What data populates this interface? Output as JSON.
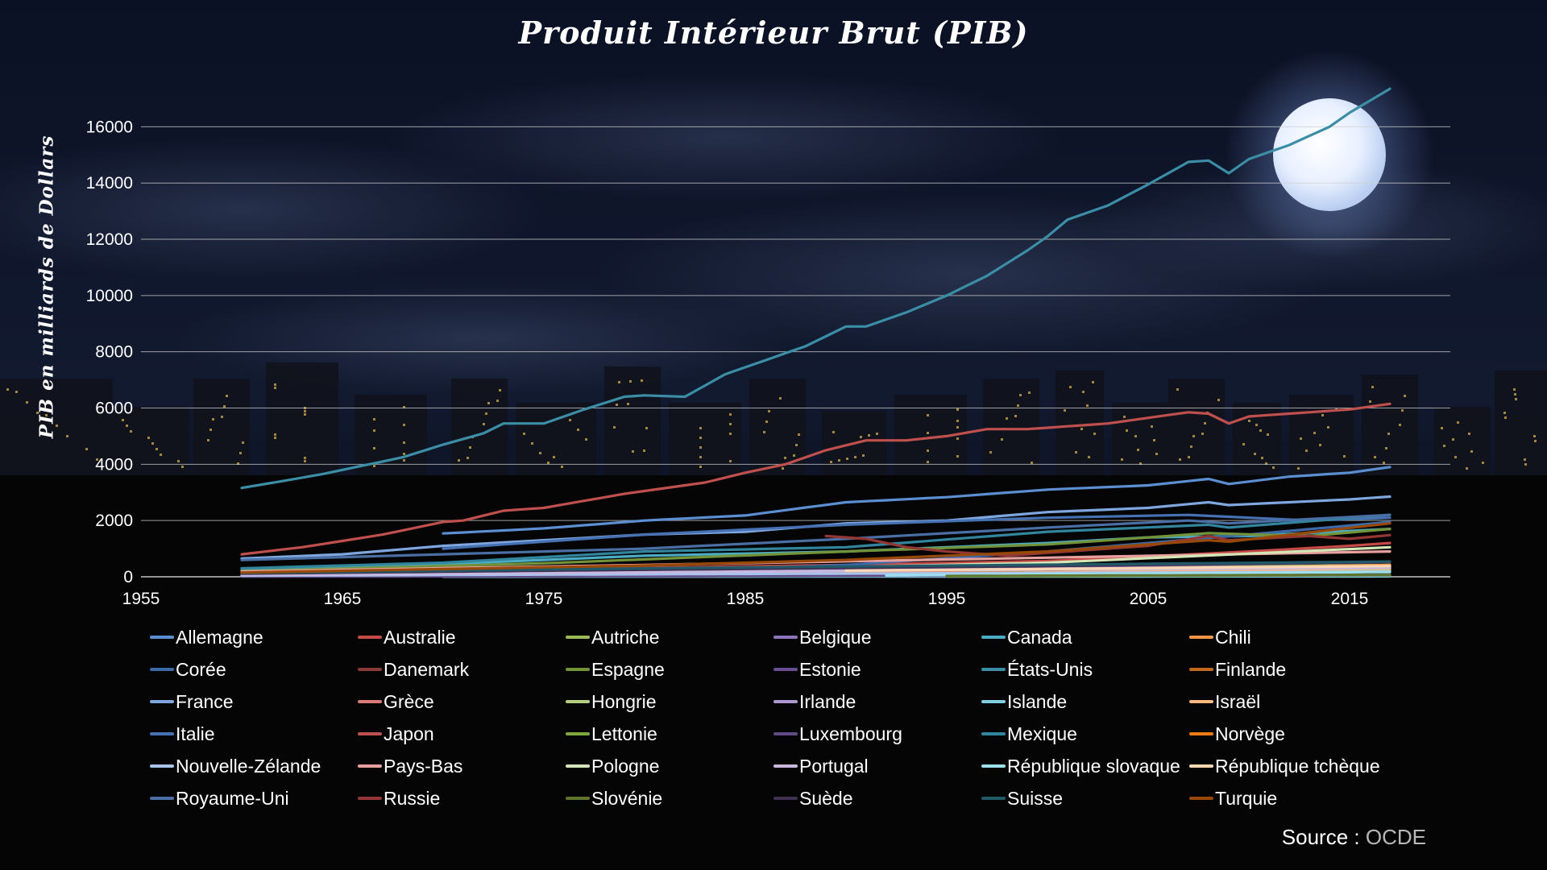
{
  "chart_data": {
    "type": "line",
    "title": "Produit Intérieur Brut (PIB)",
    "xlabel": "",
    "ylabel": "PIB en milliards de Dollars",
    "xlim": [
      1955,
      2020
    ],
    "ylim": [
      0,
      17500
    ],
    "x_ticks": [
      1955,
      1965,
      1975,
      1985,
      1995,
      2005,
      2015
    ],
    "y_ticks": [
      0,
      2000,
      4000,
      6000,
      8000,
      10000,
      12000,
      14000,
      16000
    ],
    "grid": "horizontal",
    "legend_position": "bottom",
    "source_label": "Source",
    "source_value": "OCDE",
    "series": [
      {
        "name": "Allemagne",
        "color": "#5b8fd1",
        "start": 1970,
        "end": 2017,
        "points": [
          [
            1970,
            1540
          ],
          [
            1975,
            1720
          ],
          [
            1980,
            2000
          ],
          [
            1985,
            2180
          ],
          [
            1990,
            2650
          ],
          [
            1995,
            2830
          ],
          [
            2000,
            3100
          ],
          [
            2005,
            3250
          ],
          [
            2008,
            3480
          ],
          [
            2009,
            3300
          ],
          [
            2012,
            3560
          ],
          [
            2015,
            3700
          ],
          [
            2017,
            3900
          ]
        ]
      },
      {
        "name": "Australie",
        "color": "#c74a47",
        "start": 1960,
        "end": 2017,
        "points": [
          [
            1960,
            140
          ],
          [
            1970,
            230
          ],
          [
            1980,
            320
          ],
          [
            1990,
            420
          ],
          [
            2000,
            560
          ],
          [
            2005,
            720
          ],
          [
            2010,
            900
          ],
          [
            2015,
            1100
          ],
          [
            2017,
            1200
          ]
        ]
      },
      {
        "name": "Autriche",
        "color": "#9bbb59",
        "start": 1960,
        "end": 2017,
        "points": [
          [
            1960,
            70
          ],
          [
            1980,
            180
          ],
          [
            2000,
            300
          ],
          [
            2017,
            420
          ]
        ]
      },
      {
        "name": "Belgique",
        "color": "#8e74b8",
        "start": 1960,
        "end": 2017,
        "points": [
          [
            1960,
            90
          ],
          [
            1980,
            220
          ],
          [
            2000,
            350
          ],
          [
            2017,
            520
          ]
        ]
      },
      {
        "name": "Canada",
        "color": "#4bacc6",
        "start": 1960,
        "end": 2017,
        "points": [
          [
            1960,
            250
          ],
          [
            1970,
            450
          ],
          [
            1980,
            750
          ],
          [
            1990,
            900
          ],
          [
            2000,
            1200
          ],
          [
            2005,
            1400
          ],
          [
            2010,
            1450
          ],
          [
            2017,
            1700
          ]
        ]
      },
      {
        "name": "Chili",
        "color": "#f79646",
        "start": 1986,
        "end": 2017,
        "points": [
          [
            1986,
            60
          ],
          [
            2000,
            180
          ],
          [
            2017,
            420
          ]
        ]
      },
      {
        "name": "Corée",
        "color": "#3c6aa8",
        "start": 1970,
        "end": 2017,
        "points": [
          [
            1970,
            50
          ],
          [
            1980,
            150
          ],
          [
            1990,
            420
          ],
          [
            2000,
            900
          ],
          [
            2010,
            1500
          ],
          [
            2017,
            1950
          ]
        ]
      },
      {
        "name": "Danemark",
        "color": "#8c3a38",
        "start": 1966,
        "end": 2017,
        "points": [
          [
            1966,
            90
          ],
          [
            1990,
            180
          ],
          [
            2017,
            290
          ]
        ]
      },
      {
        "name": "Espagne",
        "color": "#73933a",
        "start": 1960,
        "end": 2017,
        "points": [
          [
            1960,
            200
          ],
          [
            1975,
            480
          ],
          [
            1990,
            900
          ],
          [
            2000,
            1150
          ],
          [
            2008,
            1550
          ],
          [
            2013,
            1450
          ],
          [
            2017,
            1700
          ]
        ]
      },
      {
        "name": "Estonie",
        "color": "#6a4e92",
        "start": 1993,
        "end": 2017,
        "points": [
          [
            1993,
            10
          ],
          [
            2017,
            40
          ]
        ]
      },
      {
        "name": "États-Unis",
        "color": "#3b8ea5",
        "start": 1960,
        "end": 2017,
        "points": [
          [
            1960,
            3160
          ],
          [
            1962,
            3400
          ],
          [
            1964,
            3650
          ],
          [
            1966,
            3950
          ],
          [
            1968,
            4250
          ],
          [
            1970,
            4700
          ],
          [
            1972,
            5100
          ],
          [
            1973,
            5450
          ],
          [
            1975,
            5450
          ],
          [
            1977,
            5950
          ],
          [
            1979,
            6400
          ],
          [
            1980,
            6450
          ],
          [
            1982,
            6400
          ],
          [
            1984,
            7200
          ],
          [
            1986,
            7700
          ],
          [
            1988,
            8200
          ],
          [
            1990,
            8900
          ],
          [
            1991,
            8900
          ],
          [
            1993,
            9400
          ],
          [
            1995,
            10000
          ],
          [
            1997,
            10700
          ],
          [
            1999,
            11600
          ],
          [
            2000,
            12100
          ],
          [
            2001,
            12700
          ],
          [
            2003,
            13200
          ],
          [
            2005,
            13950
          ],
          [
            2007,
            14750
          ],
          [
            2008,
            14800
          ],
          [
            2009,
            14350
          ],
          [
            2010,
            14850
          ],
          [
            2012,
            15350
          ],
          [
            2014,
            16000
          ],
          [
            2015,
            16500
          ],
          [
            2017,
            17350
          ]
        ]
      },
      {
        "name": "Finlande",
        "color": "#c46a1c",
        "start": 1975,
        "end": 2017,
        "points": [
          [
            1975,
            70
          ],
          [
            2000,
            150
          ],
          [
            2017,
            230
          ]
        ]
      },
      {
        "name": "France",
        "color": "#7ea7e0",
        "start": 1960,
        "end": 2017,
        "points": [
          [
            1960,
            650
          ],
          [
            1965,
            800
          ],
          [
            1970,
            1100
          ],
          [
            1975,
            1300
          ],
          [
            1980,
            1500
          ],
          [
            1985,
            1600
          ],
          [
            1990,
            1900
          ],
          [
            1995,
            2000
          ],
          [
            2000,
            2300
          ],
          [
            2005,
            2450
          ],
          [
            2008,
            2650
          ],
          [
            2009,
            2550
          ],
          [
            2012,
            2650
          ],
          [
            2015,
            2750
          ],
          [
            2017,
            2850
          ]
        ]
      },
      {
        "name": "Grèce",
        "color": "#da7b78",
        "start": 1970,
        "end": 2017,
        "points": [
          [
            1970,
            100
          ],
          [
            1990,
            200
          ],
          [
            2007,
            320
          ],
          [
            2013,
            240
          ],
          [
            2017,
            270
          ]
        ]
      },
      {
        "name": "Hongrie",
        "color": "#b3d080",
        "start": 1991,
        "end": 2017,
        "points": [
          [
            1991,
            110
          ],
          [
            2017,
            240
          ]
        ]
      },
      {
        "name": "Irlande",
        "color": "#ad98cf",
        "start": 1970,
        "end": 2017,
        "points": [
          [
            1970,
            30
          ],
          [
            2000,
            150
          ],
          [
            2017,
            330
          ]
        ]
      },
      {
        "name": "Islande",
        "color": "#7fcfe0",
        "start": 1970,
        "end": 2017,
        "points": [
          [
            1970,
            3
          ],
          [
            2017,
            16
          ]
        ]
      },
      {
        "name": "Israël",
        "color": "#fbb97f",
        "start": 1995,
        "end": 2017,
        "points": [
          [
            1995,
            110
          ],
          [
            2017,
            300
          ]
        ]
      },
      {
        "name": "Italie",
        "color": "#4672b4",
        "start": 1970,
        "end": 2017,
        "points": [
          [
            1970,
            1000
          ],
          [
            1980,
            1500
          ],
          [
            1990,
            1850
          ],
          [
            2000,
            2100
          ],
          [
            2007,
            2200
          ],
          [
            2013,
            2000
          ],
          [
            2017,
            2100
          ]
        ]
      },
      {
        "name": "Japon",
        "color": "#c0504d",
        "start": 1960,
        "end": 2017,
        "points": [
          [
            1960,
            800
          ],
          [
            1963,
            1050
          ],
          [
            1967,
            1500
          ],
          [
            1970,
            1950
          ],
          [
            1971,
            2000
          ],
          [
            1973,
            2350
          ],
          [
            1975,
            2450
          ],
          [
            1977,
            2700
          ],
          [
            1979,
            2950
          ],
          [
            1981,
            3150
          ],
          [
            1983,
            3350
          ],
          [
            1985,
            3700
          ],
          [
            1987,
            4000
          ],
          [
            1989,
            4500
          ],
          [
            1991,
            4850
          ],
          [
            1993,
            4850
          ],
          [
            1995,
            5000
          ],
          [
            1997,
            5250
          ],
          [
            1999,
            5250
          ],
          [
            2001,
            5350
          ],
          [
            2003,
            5450
          ],
          [
            2005,
            5650
          ],
          [
            2007,
            5850
          ],
          [
            2008,
            5800
          ],
          [
            2009,
            5450
          ],
          [
            2010,
            5700
          ],
          [
            2012,
            5800
          ],
          [
            2014,
            5900
          ],
          [
            2015,
            5950
          ],
          [
            2017,
            6150
          ]
        ]
      },
      {
        "name": "Lettonie",
        "color": "#7fa83c",
        "start": 1995,
        "end": 2017,
        "points": [
          [
            1995,
            20
          ],
          [
            2017,
            55
          ]
        ]
      },
      {
        "name": "Luxembourg",
        "color": "#604a85",
        "start": 1960,
        "end": 2017,
        "points": [
          [
            1960,
            5
          ],
          [
            2017,
            60
          ]
        ]
      },
      {
        "name": "Mexique",
        "color": "#31859c",
        "start": 1960,
        "end": 2017,
        "points": [
          [
            1960,
            300
          ],
          [
            1970,
            500
          ],
          [
            1980,
            900
          ],
          [
            1990,
            1050
          ],
          [
            2000,
            1600
          ],
          [
            2008,
            1850
          ],
          [
            2009,
            1750
          ],
          [
            2017,
            2200
          ]
        ]
      },
      {
        "name": "Norvège",
        "color": "#f07a16",
        "start": 1970,
        "end": 2017,
        "points": [
          [
            1970,
            80
          ],
          [
            2000,
            250
          ],
          [
            2017,
            350
          ]
        ]
      },
      {
        "name": "Nouvelle-Zélande",
        "color": "#a9c4ec",
        "start": 1960,
        "end": 2017,
        "points": [
          [
            1960,
            40
          ],
          [
            2017,
            180
          ]
        ]
      },
      {
        "name": "Pays-Bas",
        "color": "#e8a09e",
        "start": 1960,
        "end": 2017,
        "points": [
          [
            1960,
            190
          ],
          [
            1980,
            420
          ],
          [
            2000,
            680
          ],
          [
            2017,
            900
          ]
        ]
      },
      {
        "name": "Pologne",
        "color": "#d4e6b5",
        "start": 1990,
        "end": 2017,
        "points": [
          [
            1990,
            350
          ],
          [
            2000,
            500
          ],
          [
            2017,
            1050
          ]
        ]
      },
      {
        "name": "Portugal",
        "color": "#c8b8e0",
        "start": 1960,
        "end": 2017,
        "points": [
          [
            1960,
            60
          ],
          [
            2000,
            260
          ],
          [
            2017,
            320
          ]
        ]
      },
      {
        "name": "République slovaque",
        "color": "#9fe0ee",
        "start": 1992,
        "end": 2017,
        "points": [
          [
            1992,
            50
          ],
          [
            2017,
            170
          ]
        ]
      },
      {
        "name": "République tchèque",
        "color": "#fcd5b5",
        "start": 1990,
        "end": 2017,
        "points": [
          [
            1990,
            220
          ],
          [
            2017,
            380
          ]
        ]
      },
      {
        "name": "Royaume-Uni",
        "color": "#4a6fa5",
        "start": 1960,
        "end": 2017,
        "points": [
          [
            1960,
            600
          ],
          [
            1970,
            800
          ],
          [
            1980,
            1000
          ],
          [
            1990,
            1350
          ],
          [
            2000,
            1750
          ],
          [
            2007,
            2000
          ],
          [
            2009,
            1900
          ],
          [
            2017,
            2200
          ]
        ]
      },
      {
        "name": "Russie",
        "color": "#943634",
        "start": 1989,
        "end": 2017,
        "points": [
          [
            1989,
            1450
          ],
          [
            1991,
            1350
          ],
          [
            1993,
            1050
          ],
          [
            1995,
            900
          ],
          [
            1998,
            750
          ],
          [
            2000,
            850
          ],
          [
            2005,
            1100
          ],
          [
            2008,
            1450
          ],
          [
            2009,
            1300
          ],
          [
            2013,
            1450
          ],
          [
            2015,
            1350
          ],
          [
            2017,
            1480
          ]
        ]
      },
      {
        "name": "Slovénie",
        "color": "#5f7530",
        "start": 1995,
        "end": 2017,
        "points": [
          [
            1995,
            30
          ],
          [
            2017,
            70
          ]
        ]
      },
      {
        "name": "Suède",
        "color": "#3f3151",
        "start": 1960,
        "end": 2017,
        "points": [
          [
            1960,
            110
          ],
          [
            1980,
            250
          ],
          [
            2000,
            380
          ],
          [
            2017,
            520
          ]
        ]
      },
      {
        "name": "Suisse",
        "color": "#215968",
        "start": 1960,
        "end": 2017,
        "points": [
          [
            1960,
            130
          ],
          [
            1980,
            300
          ],
          [
            2000,
            430
          ],
          [
            2017,
            540
          ]
        ]
      },
      {
        "name": "Turquie",
        "color": "#984807",
        "start": 1960,
        "end": 2017,
        "points": [
          [
            1960,
            150
          ],
          [
            1980,
            400
          ],
          [
            1990,
            600
          ],
          [
            2000,
            900
          ],
          [
            2008,
            1300
          ],
          [
            2009,
            1250
          ],
          [
            2017,
            1900
          ]
        ]
      }
    ]
  }
}
